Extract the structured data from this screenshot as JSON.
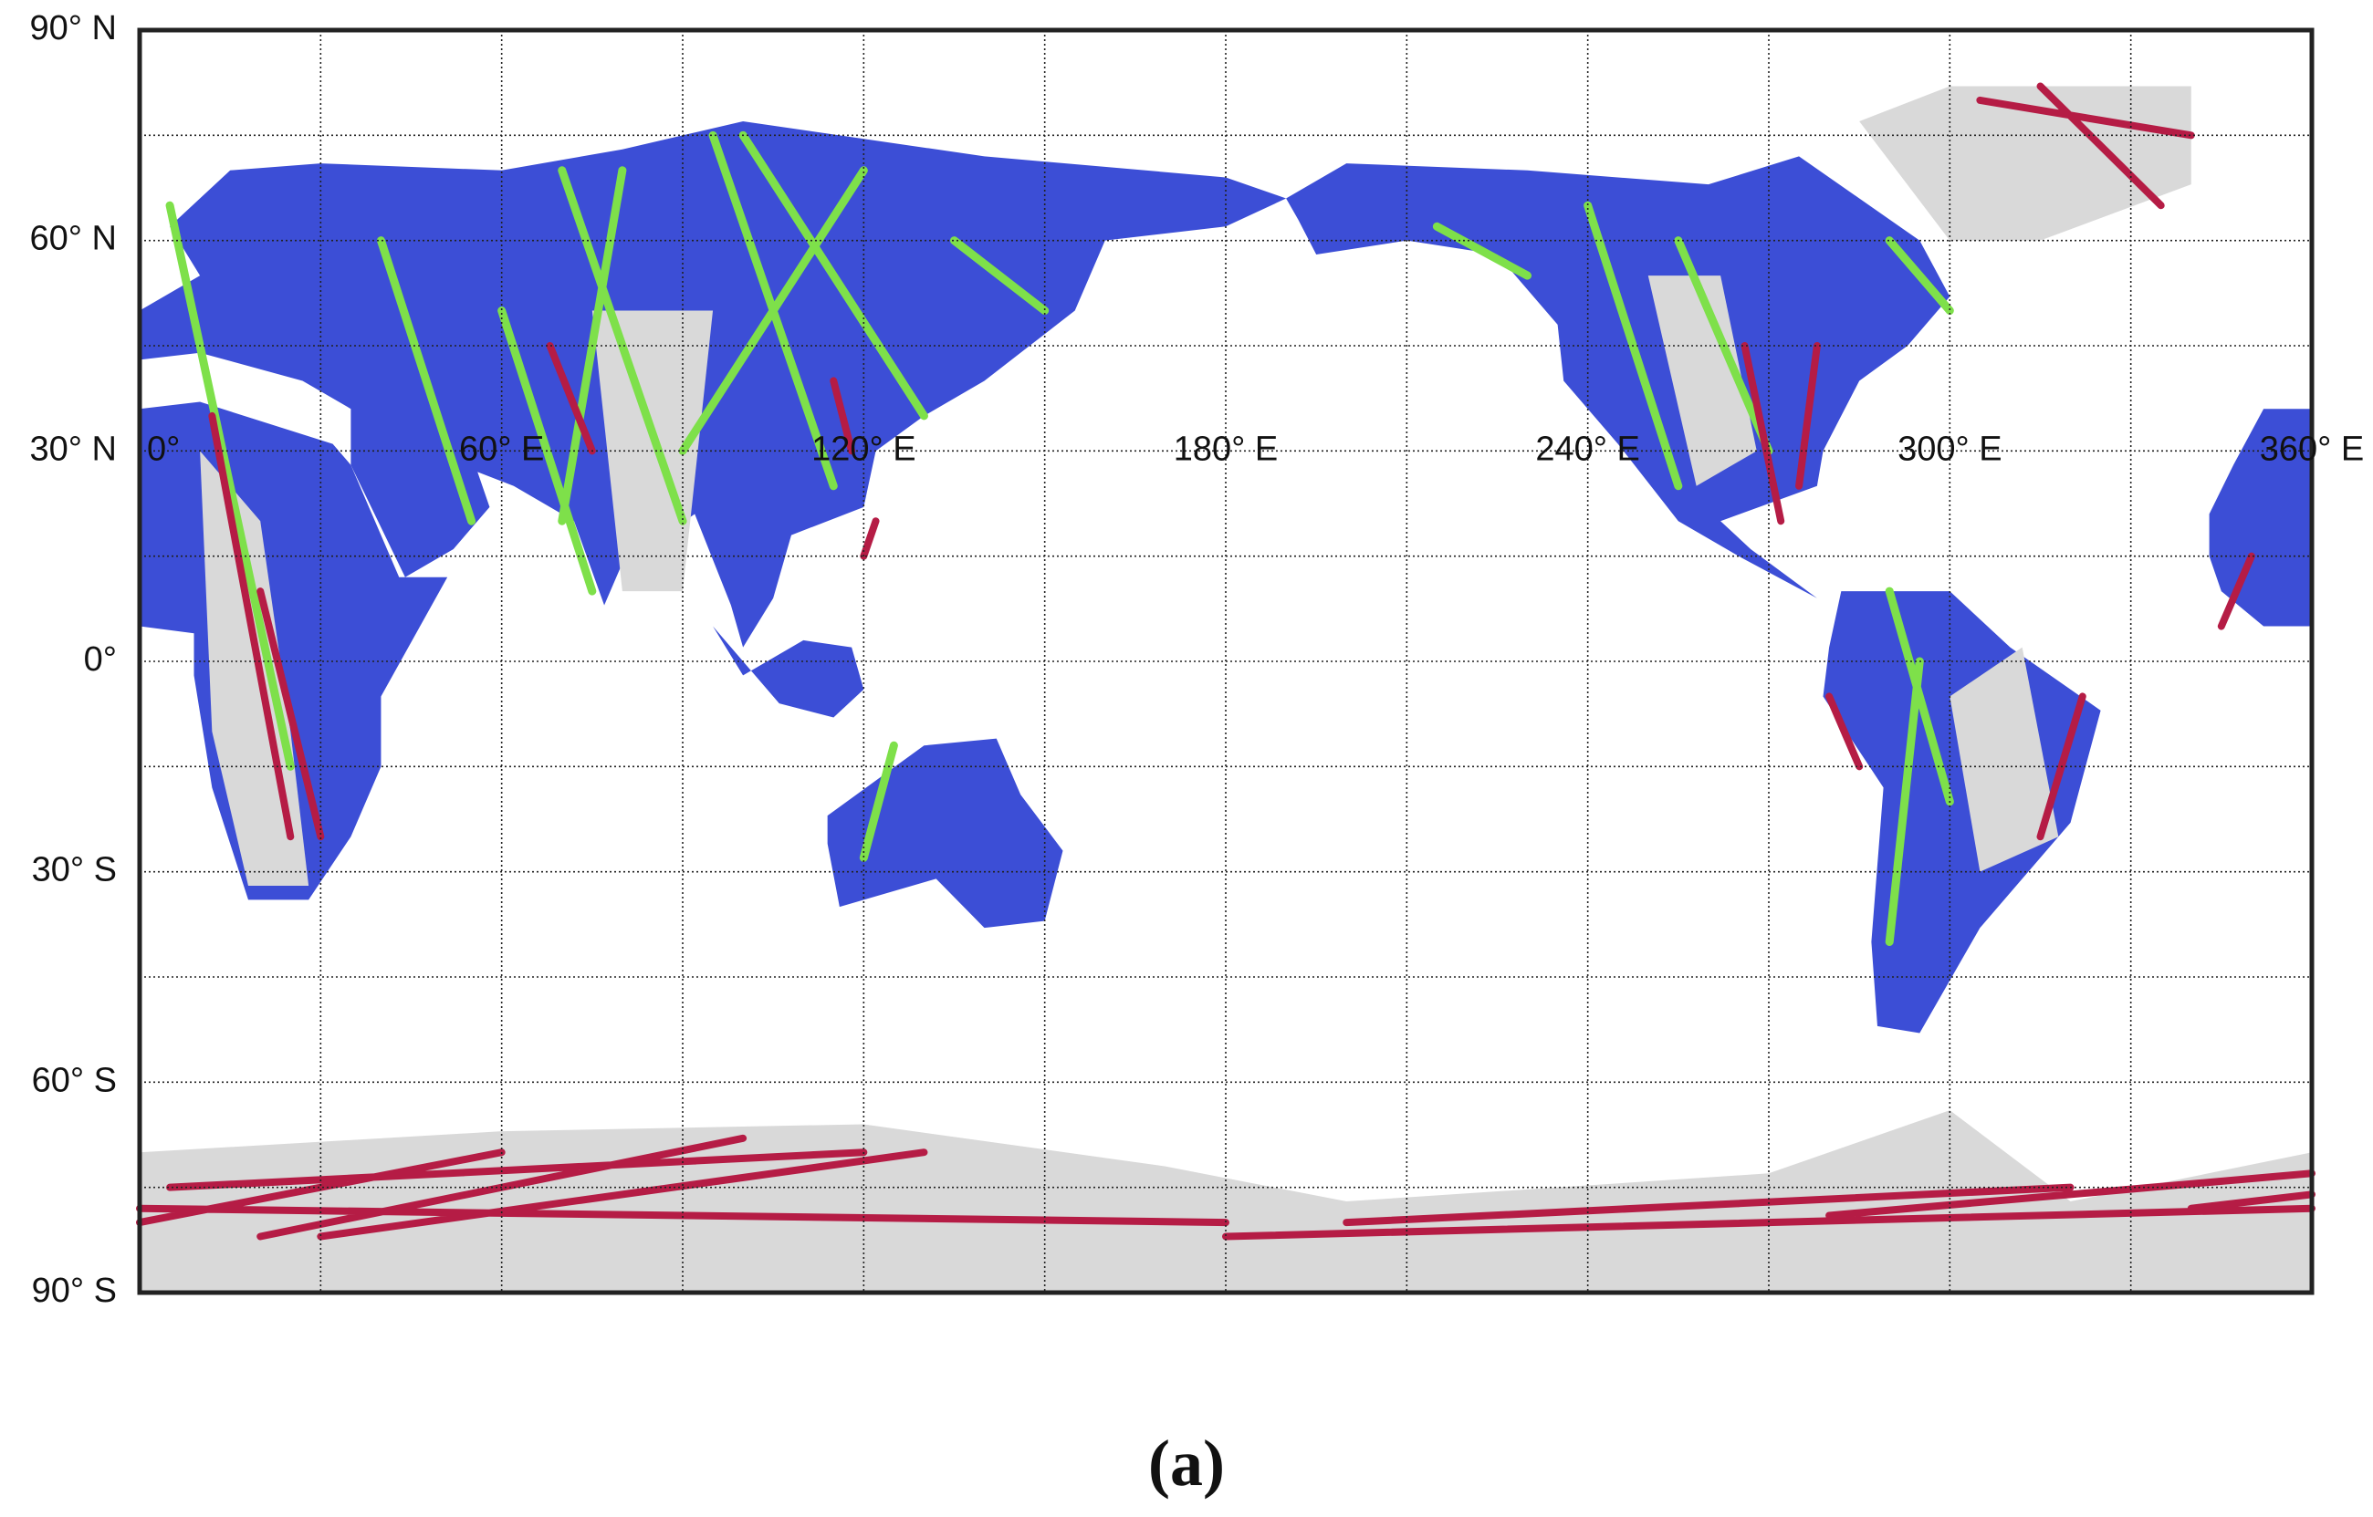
{
  "map": {
    "latitude_labels": [
      "90° N",
      "60° N",
      "30° N",
      "0°",
      "30° S",
      "60° S",
      "90° S"
    ],
    "longitude_labels": [
      "0°",
      "60° E",
      "120° E",
      "180° E",
      "240° E",
      "300° E",
      "360° E"
    ]
  },
  "caption": "(a)"
}
